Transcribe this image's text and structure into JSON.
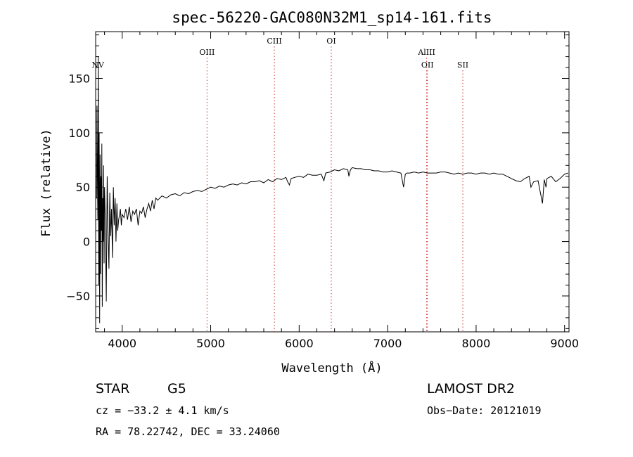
{
  "chart_data": {
    "type": "line",
    "title": "spec-56220-GAC080N32M1_sp14-161.fits",
    "xlabel": "Wavelength (Å)",
    "ylabel": "Flux (relative)",
    "xlim": [
      3700,
      9050
    ],
    "ylim": [
      -83,
      193
    ],
    "x_ticks": [
      4000,
      5000,
      6000,
      7000,
      8000,
      9000
    ],
    "y_ticks": [
      -50,
      0,
      50,
      100,
      150
    ],
    "x_tick_labels": [
      "4000",
      "5000",
      "6000",
      "7000",
      "8000",
      "9000"
    ],
    "y_tick_labels": [
      "−50",
      "0",
      "50",
      "100",
      "150"
    ],
    "grid": false,
    "legend": "none",
    "line_color": "#000000",
    "marker_color": "#cc3333",
    "spectral_lines": [
      {
        "label": "NV",
        "wavelength": 3725,
        "label_level": 2
      },
      {
        "label": "OIII",
        "wavelength": 4959,
        "label_level": 1
      },
      {
        "label": "CIII",
        "wavelength": 5720,
        "label_level": 0
      },
      {
        "label": "OI",
        "wavelength": 6363,
        "label_level": 0
      },
      {
        "label": "AlIII",
        "wavelength": 7441,
        "label_level": 1
      },
      {
        "label": "OII",
        "wavelength": 7450,
        "label_level": 2
      },
      {
        "label": "SII",
        "wavelength": 7850,
        "label_level": 2
      }
    ],
    "series": [
      {
        "values_description_free": true,
        "x": [
          3710,
          3715,
          3720,
          3725,
          3730,
          3735,
          3740,
          3745,
          3750,
          3755,
          3760,
          3765,
          3770,
          3775,
          3780,
          3785,
          3790,
          3795,
          3800,
          3810,
          3820,
          3830,
          3840,
          3850,
          3860,
          3870,
          3880,
          3890,
          3900,
          3910,
          3920,
          3930,
          3940,
          3950,
          3960,
          3970,
          3980,
          3990,
          4000,
          4020,
          4040,
          4060,
          4080,
          4100,
          4120,
          4140,
          4160,
          4180,
          4200,
          4220,
          4240,
          4260,
          4280,
          4300,
          4320,
          4340,
          4360,
          4380,
          4400,
          4450,
          4500,
          4550,
          4600,
          4650,
          4700,
          4750,
          4800,
          4850,
          4900,
          4950,
          5000,
          5050,
          5100,
          5150,
          5200,
          5250,
          5300,
          5350,
          5400,
          5450,
          5500,
          5550,
          5600,
          5650,
          5700,
          5750,
          5800,
          5850,
          5870,
          5890,
          5910,
          5950,
          6000,
          6050,
          6100,
          6150,
          6200,
          6250,
          6280,
          6300,
          6350,
          6400,
          6450,
          6500,
          6550,
          6563,
          6580,
          6600,
          6650,
          6700,
          6750,
          6800,
          6850,
          6900,
          6950,
          7000,
          7050,
          7100,
          7150,
          7180,
          7200,
          7220,
          7250,
          7300,
          7350,
          7400,
          7450,
          7500,
          7550,
          7600,
          7650,
          7700,
          7750,
          7800,
          7850,
          7900,
          7950,
          8000,
          8050,
          8100,
          8150,
          8200,
          8250,
          8300,
          8350,
          8400,
          8450,
          8500,
          8550,
          8600,
          8620,
          8650,
          8700,
          8750,
          8770,
          8790,
          8800,
          8850,
          8900,
          8950,
          9000,
          9040
        ],
        "y": [
          40,
          125,
          60,
          20,
          170,
          -40,
          100,
          -75,
          80,
          -30,
          60,
          10,
          90,
          -60,
          40,
          0,
          70,
          -20,
          50,
          20,
          -55,
          60,
          10,
          -25,
          45,
          5,
          30,
          -15,
          50,
          15,
          40,
          0,
          35,
          10,
          20,
          25,
          30,
          15,
          25,
          22,
          30,
          20,
          32,
          18,
          28,
          25,
          30,
          15,
          28,
          26,
          32,
          22,
          30,
          35,
          28,
          38,
          30,
          40,
          38,
          42,
          40,
          43,
          44,
          42,
          45,
          44,
          46,
          47,
          46,
          48,
          50,
          49,
          51,
          50,
          52,
          53,
          52,
          54,
          53,
          55,
          55,
          56,
          54,
          57,
          55,
          58,
          57,
          59,
          55,
          52,
          58,
          59,
          60,
          59,
          62,
          61,
          61,
          62,
          56,
          63,
          64,
          66,
          65,
          67,
          66,
          60,
          66,
          68,
          67,
          67,
          66,
          66,
          65,
          65,
          64,
          64,
          65,
          64,
          63,
          50,
          62,
          63,
          63,
          64,
          63,
          64,
          63,
          63,
          63,
          64,
          64,
          63,
          62,
          63,
          62,
          63,
          63,
          62,
          63,
          63,
          62,
          63,
          62,
          62,
          60,
          58,
          56,
          55,
          58,
          60,
          50,
          55,
          56,
          35,
          57,
          50,
          58,
          60,
          55,
          58,
          62,
          63
        ]
      }
    ]
  },
  "info": {
    "object_class": "STAR",
    "subclass": "G5",
    "survey": "LAMOST DR2",
    "cz": "cz = −33.2 ± 4.1 km/s",
    "obs_date": "Obs−Date: 20121019",
    "coords": "RA =  78.22742, DEC =  33.24060"
  }
}
